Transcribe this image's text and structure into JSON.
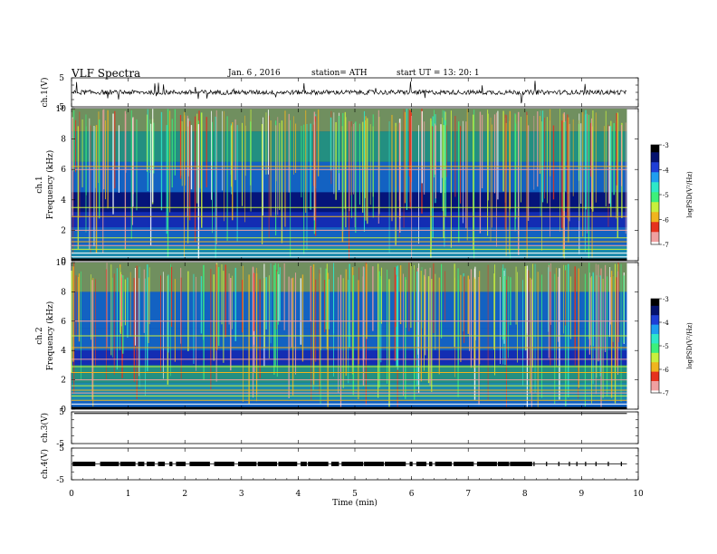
{
  "header": {
    "title": "VLF Spectra",
    "date": "Jan. 6 , 2016",
    "station": "station= ATH",
    "start": "start UT = 13: 20: 1"
  },
  "colors": {
    "waveform": "#000000",
    "background": "#ffffff",
    "colormap": [
      "#000000",
      "#05126e",
      "#1f3ed6",
      "#1f9ef0",
      "#2ee8c8",
      "#3cf07a",
      "#c8f03c",
      "#f0b41e",
      "#e6321e",
      "#f0a0a0",
      "#ffffff"
    ]
  },
  "chart_data": [
    {
      "type": "line",
      "panel": "ch1-waveform",
      "ylabel": "ch.1(V)",
      "ylim": [
        -5,
        5
      ],
      "ytick_labels": [
        "5",
        "-5"
      ],
      "xlim": [
        0,
        10
      ],
      "baseline_value": 0,
      "noise_amplitude": 0.8,
      "series": [
        {
          "values_summary": "continuous noise around 0 V with frequent spikes to about ±3 V"
        }
      ]
    },
    {
      "type": "heatmap",
      "panel": "ch1-spectrogram",
      "ylabel": "Frequency (kHz)",
      "channel_label": "ch.1",
      "ylim": [
        0,
        10
      ],
      "ytick_labels": [
        "0",
        "2",
        "4",
        "6",
        "8",
        "10"
      ],
      "xlim": [
        0,
        10
      ],
      "data_end_minute": 9.8,
      "colorbar": {
        "label": "logPSD(V²/Hz)",
        "range": [
          -7,
          -3
        ],
        "tick_labels": [
          "-3",
          "-4",
          "-5",
          "-6",
          "-7"
        ]
      }
    },
    {
      "type": "heatmap",
      "panel": "ch2-spectrogram",
      "ylabel": "Frequency (kHz)",
      "channel_label": "ch.2",
      "ylim": [
        0,
        10
      ],
      "ytick_labels": [
        "0",
        "2",
        "4",
        "6",
        "8",
        "10"
      ],
      "xlim": [
        0,
        10
      ],
      "data_end_minute": 9.8,
      "colorbar": {
        "label": "logPSD(V²/Hz)",
        "range": [
          -7,
          -3
        ],
        "tick_labels": [
          "-3",
          "-4",
          "-5",
          "-6",
          "-7"
        ]
      }
    },
    {
      "type": "line",
      "panel": "ch3-waveform",
      "ylabel": "ch.3(V)",
      "ylim": [
        -5,
        5
      ],
      "ytick_labels": [
        "5",
        "-5"
      ],
      "xlim": [
        0,
        10
      ],
      "baseline_value": 4.5
    },
    {
      "type": "line",
      "panel": "ch4-waveform",
      "ylabel": "ch.4(V)",
      "ylim": [
        -5,
        5
      ],
      "ytick_labels": [
        "5",
        "-5"
      ],
      "xlim": [
        0,
        10
      ],
      "baseline_value": 0,
      "series": [
        {
          "values_summary": "square-pulse train near 0 V, dense pulses until ~7.9 min, sparse afterwards"
        }
      ]
    }
  ],
  "xaxis": {
    "label": "Time (min)",
    "ticks": [
      "0",
      "1",
      "2",
      "3",
      "4",
      "5",
      "6",
      "7",
      "8",
      "9",
      "10"
    ]
  }
}
